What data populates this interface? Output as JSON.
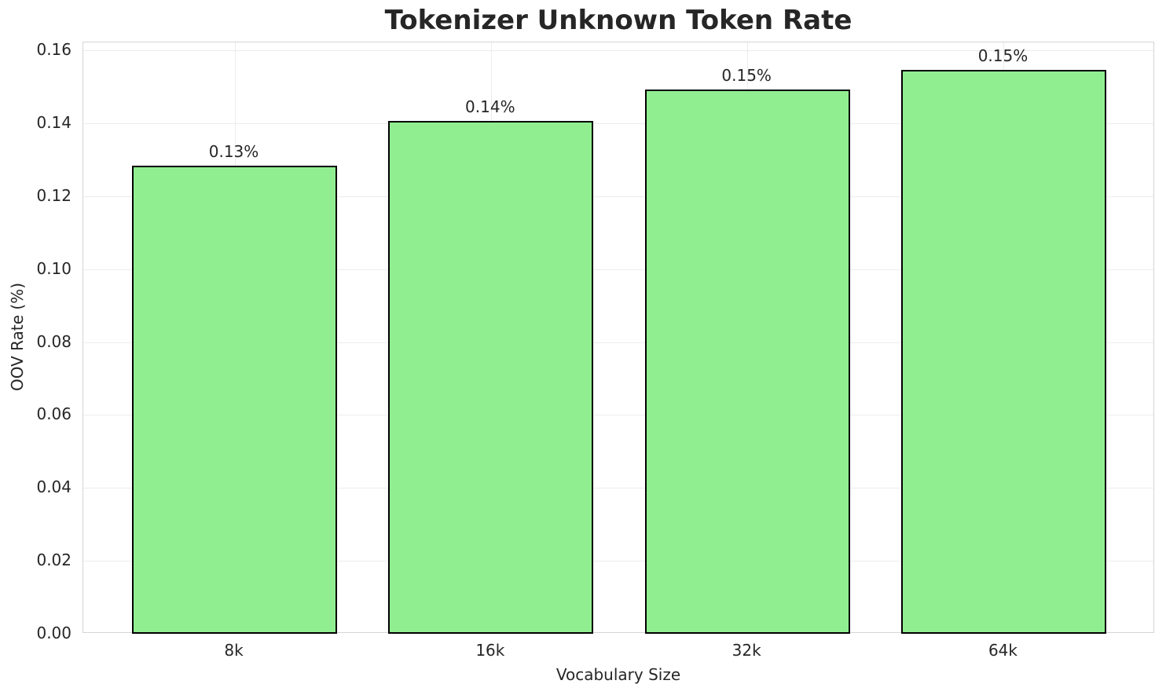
{
  "chart_data": {
    "type": "bar",
    "title": "Tokenizer Unknown Token Rate",
    "xlabel": "Vocabulary Size",
    "ylabel": "OOV Rate (%)",
    "categories": [
      "8k",
      "16k",
      "32k",
      "64k"
    ],
    "values": [
      0.1283,
      0.1406,
      0.1492,
      0.1546
    ],
    "value_labels": [
      "0.13%",
      "0.14%",
      "0.15%",
      "0.15%"
    ],
    "yticks": [
      0.0,
      0.02,
      0.04,
      0.06,
      0.08,
      0.1,
      0.12,
      0.14,
      0.16
    ],
    "ytick_labels": [
      "0.00",
      "0.02",
      "0.04",
      "0.06",
      "0.08",
      "0.10",
      "0.12",
      "0.14",
      "0.16"
    ],
    "ylim": [
      0,
      0.1622
    ],
    "grid": true,
    "legend": false,
    "colors": {
      "bar_fill": "#90ee90",
      "bar_edge": "#000000",
      "grid_line": "#ececec",
      "axes_edge": "#d5d5d5",
      "text": "#262626",
      "background": "#ffffff"
    }
  }
}
